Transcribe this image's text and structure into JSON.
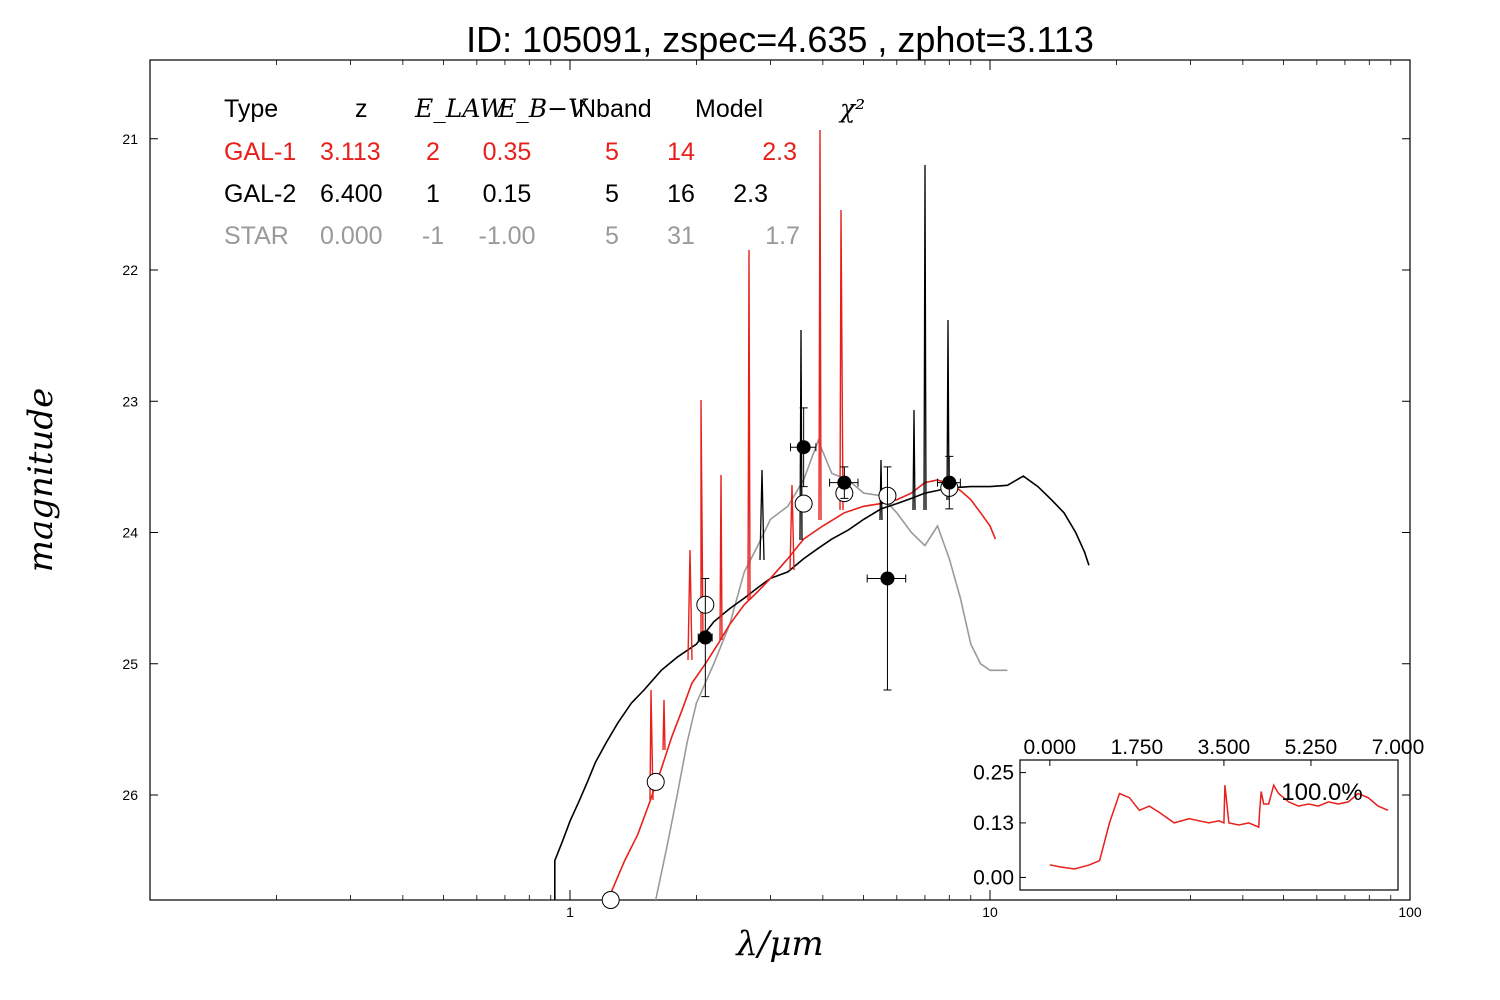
{
  "chart_data": {
    "type": "line",
    "title": "ID:  105091, zspec=4.635 , zphot=3.113",
    "xlabel": "λ/μm",
    "ylabel": "magnitude",
    "xscale": "log",
    "xlim": [
      0.1,
      100
    ],
    "ylim": [
      26.8,
      20.4
    ],
    "x_tick_labels": [
      "1",
      "10",
      "100"
    ],
    "x_ticks": [
      1,
      10,
      100
    ],
    "y_tick_labels": [
      "21",
      "22",
      "23",
      "24",
      "25",
      "26"
    ],
    "y_ticks": [
      21,
      22,
      23,
      24,
      25,
      26
    ],
    "legend_table": {
      "headers": [
        "Type",
        "z",
        "E_LAW",
        "E_B−V",
        "Nband",
        "Model",
        "χ²"
      ],
      "rows": [
        {
          "type": "GAL-1",
          "z": "3.113",
          "elaw": "2",
          "ebv": "0.35",
          "nband": "5",
          "model": "14",
          "chi2": "2.3",
          "color": "#e8201c"
        },
        {
          "type": "GAL-2",
          "z": "6.400",
          "elaw": "1",
          "ebv": "0.15",
          "nband": "5",
          "model": "16",
          "chi2": "2.3",
          "color": "#000000"
        },
        {
          "type": "STAR",
          "z": "0.000",
          "elaw": "-1",
          "ebv": "-1.00",
          "nband": "5",
          "model": "31",
          "chi2": "1.7",
          "color": "#9a9a9a"
        }
      ]
    },
    "series": [
      {
        "color": "#000000",
        "points": [
          [
            0.92,
            26.8
          ],
          [
            0.92,
            26.5
          ],
          [
            0.96,
            26.35
          ],
          [
            1.0,
            26.2
          ],
          [
            1.05,
            26.05
          ],
          [
            1.1,
            25.9
          ],
          [
            1.15,
            25.75
          ],
          [
            1.22,
            25.6
          ],
          [
            1.3,
            25.45
          ],
          [
            1.4,
            25.3
          ],
          [
            1.5,
            25.2
          ],
          [
            1.65,
            25.05
          ],
          [
            1.8,
            24.95
          ],
          [
            2.0,
            24.85
          ],
          [
            2.2,
            24.68
          ],
          [
            2.4,
            24.58
          ],
          [
            2.6,
            24.5
          ],
          [
            2.8,
            24.42
          ],
          [
            3.0,
            24.35
          ],
          [
            3.3,
            24.3
          ],
          [
            3.6,
            24.2
          ],
          [
            3.9,
            24.12
          ],
          [
            4.2,
            24.05
          ],
          [
            4.6,
            23.98
          ],
          [
            5.0,
            23.9
          ],
          [
            5.5,
            23.82
          ],
          [
            6.0,
            23.78
          ],
          [
            6.5,
            23.74
          ],
          [
            7.0,
            23.7
          ],
          [
            7.5,
            23.68
          ],
          [
            8.0,
            23.66
          ],
          [
            9.0,
            23.65
          ],
          [
            10.0,
            23.65
          ],
          [
            11.0,
            23.64
          ],
          [
            12.0,
            23.57
          ],
          [
            13.0,
            23.65
          ],
          [
            14.0,
            23.75
          ],
          [
            15.0,
            23.85
          ],
          [
            16.0,
            24.0
          ],
          [
            16.8,
            24.15
          ],
          [
            17.2,
            24.25
          ]
        ]
      },
      {
        "color": "#e8201c",
        "points": [
          [
            1.25,
            26.75
          ],
          [
            1.35,
            26.5
          ],
          [
            1.45,
            26.3
          ],
          [
            1.55,
            26.05
          ],
          [
            1.65,
            25.8
          ],
          [
            1.75,
            25.55
          ],
          [
            1.85,
            25.35
          ],
          [
            1.95,
            25.15
          ],
          [
            2.1,
            25.0
          ],
          [
            2.25,
            24.85
          ],
          [
            2.4,
            24.7
          ],
          [
            2.6,
            24.55
          ],
          [
            2.8,
            24.45
          ],
          [
            3.0,
            24.35
          ],
          [
            3.3,
            24.2
          ],
          [
            3.6,
            24.05
          ],
          [
            4.0,
            23.95
          ],
          [
            4.5,
            23.85
          ],
          [
            5.0,
            23.8
          ],
          [
            5.5,
            23.78
          ],
          [
            6.0,
            23.75
          ],
          [
            6.5,
            23.7
          ],
          [
            7.0,
            23.62
          ],
          [
            7.5,
            23.6
          ],
          [
            8.0,
            23.63
          ],
          [
            8.5,
            23.68
          ],
          [
            9.0,
            23.75
          ],
          [
            9.5,
            23.85
          ],
          [
            10.0,
            23.95
          ],
          [
            10.3,
            24.05
          ]
        ]
      },
      {
        "color": "#9a9a9a",
        "points": [
          [
            1.6,
            26.8
          ],
          [
            1.7,
            26.4
          ],
          [
            1.8,
            26.0
          ],
          [
            1.9,
            25.6
          ],
          [
            2.0,
            25.3
          ],
          [
            2.2,
            25.0
          ],
          [
            2.4,
            24.7
          ],
          [
            2.6,
            24.3
          ],
          [
            2.8,
            24.1
          ],
          [
            3.0,
            23.9
          ],
          [
            3.3,
            23.8
          ],
          [
            3.6,
            23.6
          ],
          [
            3.9,
            23.3
          ],
          [
            4.2,
            23.55
          ],
          [
            4.6,
            23.6
          ],
          [
            5.0,
            23.7
          ],
          [
            5.5,
            23.72
          ],
          [
            6.0,
            23.85
          ],
          [
            6.5,
            24.0
          ],
          [
            7.0,
            24.1
          ],
          [
            7.5,
            23.95
          ],
          [
            8.0,
            24.2
          ],
          [
            8.5,
            24.5
          ],
          [
            9.0,
            24.85
          ],
          [
            9.5,
            25.0
          ],
          [
            10.0,
            25.05
          ],
          [
            11.0,
            25.05
          ]
        ]
      }
    ],
    "photometry_filled": [
      {
        "x": 2.1,
        "y": 24.8,
        "xerr": 0.08,
        "yerr": 0.45
      },
      {
        "x": 3.6,
        "y": 23.35,
        "xerr": 0.25,
        "yerr": 0.3
      },
      {
        "x": 4.5,
        "y": 23.62,
        "xerr": 0.35,
        "yerr": 0.12
      },
      {
        "x": 5.7,
        "y": 24.35,
        "xerr": 0.6,
        "yerr": 0.85
      },
      {
        "x": 8.0,
        "y": 23.62,
        "xerr": 0.5,
        "yerr": 0.2
      }
    ],
    "photometry_open": [
      {
        "x": 1.25,
        "y": 26.8
      },
      {
        "x": 1.6,
        "y": 25.9
      },
      {
        "x": 2.1,
        "y": 24.55
      },
      {
        "x": 3.6,
        "y": 23.78
      },
      {
        "x": 4.5,
        "y": 23.7
      },
      {
        "x": 5.7,
        "y": 23.72
      },
      {
        "x": 8.0,
        "y": 23.66
      }
    ],
    "inset": {
      "type": "line",
      "color": "#e8201c",
      "x_tick_labels": [
        "0.000",
        "1.750",
        "3.500",
        "5.250",
        "7.000"
      ],
      "x_ticks": [
        0,
        1.75,
        3.5,
        5.25,
        7.0
      ],
      "y_tick_labels": [
        "0.25",
        "0.13",
        "0.00"
      ],
      "y_ticks": [
        0.25,
        0.13,
        0.0
      ],
      "xlim": [
        -0.6,
        7.0
      ],
      "ylim": [
        -0.03,
        0.28
      ],
      "annotation": "100.0%",
      "x": [
        0.0,
        0.2,
        0.5,
        0.8,
        1.0,
        1.2,
        1.4,
        1.6,
        1.8,
        2.0,
        2.2,
        2.5,
        2.8,
        3.0,
        3.2,
        3.4,
        3.5,
        3.52,
        3.6,
        3.8,
        4.0,
        4.2,
        4.22,
        4.25,
        4.3,
        4.4,
        4.5,
        4.6,
        4.8,
        5.0,
        5.2,
        5.4,
        5.6,
        5.8,
        6.0,
        6.2,
        6.4,
        6.6,
        6.8
      ],
      "y": [
        0.03,
        0.025,
        0.02,
        0.03,
        0.04,
        0.13,
        0.2,
        0.19,
        0.16,
        0.17,
        0.155,
        0.13,
        0.14,
        0.135,
        0.13,
        0.135,
        0.13,
        0.22,
        0.13,
        0.125,
        0.13,
        0.12,
        0.16,
        0.205,
        0.175,
        0.175,
        0.22,
        0.2,
        0.18,
        0.17,
        0.175,
        0.17,
        0.18,
        0.175,
        0.18,
        0.2,
        0.19,
        0.17,
        0.16
      ]
    }
  }
}
